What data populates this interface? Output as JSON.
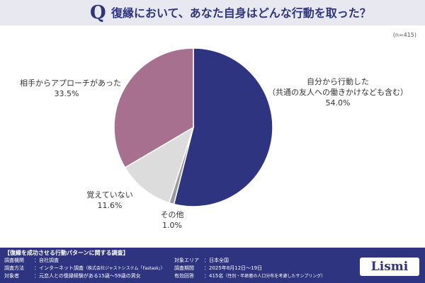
{
  "header": {
    "q_mark": "Q",
    "title": "復縁において、あなた自身はどんな行動を取った？"
  },
  "n_label": "(n=415)",
  "chart_data": {
    "type": "pie",
    "title": "復縁において、あなた自身はどんな行動を取った？",
    "slices": [
      {
        "label": "自分から行動した（共通の友人への働きかけなども含む）",
        "value": 54.0,
        "display": "54.0%",
        "color": "#2e3480"
      },
      {
        "label": "その他",
        "value": 1.0,
        "display": "1.0%",
        "color": "#9b9b9b"
      },
      {
        "label": "覚えていない",
        "value": 11.6,
        "display": "11.6%",
        "color": "#dcdcdc"
      },
      {
        "label": "相手からアプローチがあった",
        "value": 33.5,
        "display": "33.5%",
        "color": "#a8708f"
      }
    ]
  },
  "labels": {
    "self_line1": "自分から行動した",
    "self_line2": "（共通の友人への働きかけなども含む）",
    "self_pct": "54.0%",
    "other_line1": "その他",
    "other_pct": "1.0%",
    "forgot_line1": "覚えていない",
    "forgot_pct": "11.6%",
    "partner_line1": "相手からアプローチがあった",
    "partner_pct": "33.5%"
  },
  "footer": {
    "title": "【復縁を成功させる行動パターンに関する調査】",
    "org_key": "調査機関",
    "org_val": "：自社調査",
    "method_key": "調査方法",
    "method_val": "：インターネット調査",
    "method_note": "（株式会社ジャストシステム「Fastask」）",
    "target_key": "対象者",
    "target_val": "：元恋人との復縁経験がある15歳〜59歳の男女",
    "area_key": "対象エリア",
    "area_val": "：日本全国",
    "period_key": "調査期間",
    "period_val": "：2025年8月12日〜19日",
    "valid_key": "有効回答",
    "valid_val": "：415名",
    "valid_note": "（性別・年齢層の人口分布を考慮したサンプリング）"
  },
  "logo": "Lismi"
}
